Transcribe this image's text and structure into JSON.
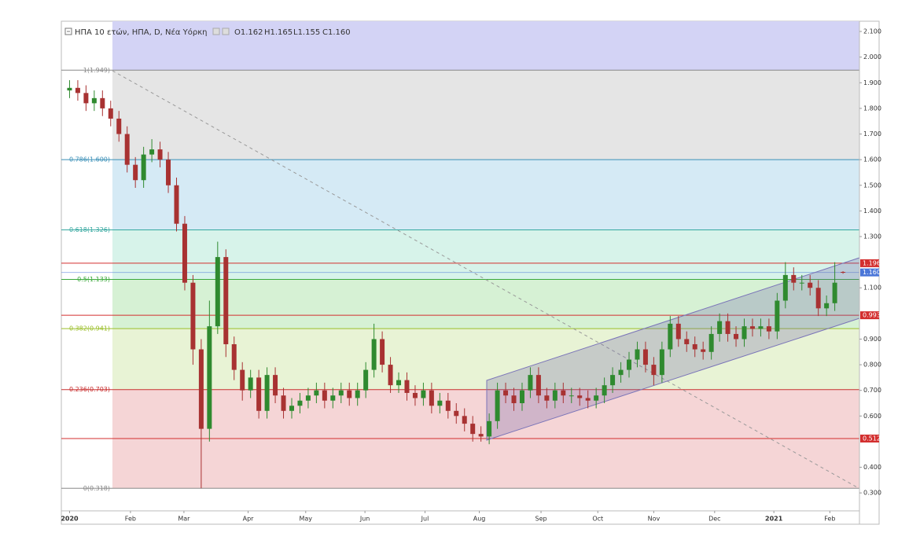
{
  "chart_data": {
    "type": "candlestick",
    "title": "ΗΠΑ 10 ετών, ΗΠΑ, D, Νέα Υόρκη",
    "ohlc_labels": [
      "O1.162",
      "H1.165",
      "L1.155",
      "C1.160"
    ],
    "xlim": [
      -1,
      96
    ],
    "ylim": [
      0.23,
      2.14
    ],
    "xticks": [
      {
        "value": 0,
        "label": "2020"
      },
      {
        "value": 7.4,
        "label": "Feb"
      },
      {
        "value": 13.9,
        "label": "Mar"
      },
      {
        "value": 21.7,
        "label": "Apr"
      },
      {
        "value": 28.7,
        "label": "May"
      },
      {
        "value": 35.9,
        "label": "Jun"
      },
      {
        "value": 43.2,
        "label": "Jul"
      },
      {
        "value": 49.8,
        "label": "Aug"
      },
      {
        "value": 57.3,
        "label": "Sep"
      },
      {
        "value": 64.2,
        "label": "Oct"
      },
      {
        "value": 71.0,
        "label": "Nov"
      },
      {
        "value": 78.4,
        "label": "Dec"
      },
      {
        "value": 85.6,
        "label": "2021"
      },
      {
        "value": 92.4,
        "label": "Feb"
      }
    ],
    "yticks": [
      {
        "value": 2.1,
        "label": "2.100"
      },
      {
        "value": 2.0,
        "label": "2.000"
      },
      {
        "value": 1.9,
        "label": "1.900"
      },
      {
        "value": 1.8,
        "label": "1.800"
      },
      {
        "value": 1.7,
        "label": "1.700"
      },
      {
        "value": 1.6,
        "label": "1.600"
      },
      {
        "value": 1.5,
        "label": "1.500"
      },
      {
        "value": 1.4,
        "label": "1.400"
      },
      {
        "value": 1.3,
        "label": "1.300"
      },
      {
        "value": 1.1,
        "label": "1.100"
      },
      {
        "value": 0.9,
        "label": "0.900"
      },
      {
        "value": 0.8,
        "label": "0.800"
      },
      {
        "value": 0.7,
        "label": "0.700"
      },
      {
        "value": 0.6,
        "label": "0.600"
      },
      {
        "value": 0.4,
        "label": "0.400"
      },
      {
        "value": 0.3,
        "label": "0.300"
      }
    ],
    "top_band_color": "#d3d3f5",
    "fib_levels": [
      {
        "label": "1(1.949)",
        "value": 1.949,
        "color": "#888888",
        "fill": "#e5e5e5"
      },
      {
        "label": "0.786(1.600)",
        "value": 1.6,
        "color": "#3a8fb7",
        "fill": "#d5eaf5"
      },
      {
        "label": "0.618(1.326)",
        "value": 1.326,
        "color": "#36a8a0",
        "fill": "#d7f3ea"
      },
      {
        "label": "0.5(1.133)",
        "value": 1.133,
        "color": "#3aa83a",
        "fill": "#d6f1d4"
      },
      {
        "label": "0.382(0.941)",
        "value": 0.941,
        "color": "#9bbf2a",
        "fill": "#e8f3d5"
      },
      {
        "label": "0.236(0.703)",
        "value": 0.703,
        "color": "#c83030",
        "fill": "#f5d5d6"
      },
      {
        "label": "0(0.318)",
        "value": 0.318,
        "color": "#888888",
        "fill": null
      }
    ],
    "hlines": [
      1.196,
      0.993,
      0.512
    ],
    "hline_color": "#d32f2f",
    "last_price": {
      "value": 1.16,
      "label": "1.160"
    },
    "last_price_color": "#4a76d8",
    "up_color": "#2f8a2f",
    "down_color": "#a83232",
    "open": [
      1.87,
      1.88,
      1.86,
      1.82,
      1.84,
      1.8,
      1.76,
      1.7,
      1.58,
      1.52,
      1.62,
      1.64,
      1.6,
      1.5,
      1.35,
      1.12,
      0.86,
      0.55,
      0.95,
      1.22,
      0.88,
      0.78,
      0.7,
      0.75,
      0.62,
      0.76,
      0.68,
      0.62,
      0.64,
      0.66,
      0.68,
      0.7,
      0.66,
      0.68,
      0.7,
      0.67,
      0.7,
      0.78,
      0.9,
      0.8,
      0.72,
      0.74,
      0.69,
      0.67,
      0.7,
      0.64,
      0.66,
      0.62,
      0.6,
      0.57,
      0.53,
      0.52,
      0.58,
      0.7,
      0.68,
      0.65,
      0.7,
      0.76,
      0.68,
      0.66,
      0.7,
      0.68,
      0.68,
      0.67,
      0.66,
      0.68,
      0.72,
      0.76,
      0.78,
      0.82,
      0.86,
      0.8,
      0.76,
      0.86,
      0.96,
      0.9,
      0.88,
      0.86,
      0.85,
      0.92,
      0.97,
      0.92,
      0.9,
      0.95,
      0.94,
      0.95,
      0.93,
      1.05,
      1.15,
      1.12,
      1.12,
      1.1,
      1.02,
      1.04,
      1.162
    ],
    "high": [
      1.91,
      1.91,
      1.89,
      1.87,
      1.87,
      1.83,
      1.79,
      1.73,
      1.61,
      1.65,
      1.68,
      1.67,
      1.63,
      1.53,
      1.38,
      1.15,
      0.9,
      1.05,
      1.28,
      1.25,
      0.91,
      0.81,
      0.78,
      0.78,
      0.79,
      0.79,
      0.71,
      0.67,
      0.69,
      0.71,
      0.73,
      0.73,
      0.71,
      0.73,
      0.73,
      0.73,
      0.81,
      0.96,
      0.93,
      0.83,
      0.77,
      0.77,
      0.72,
      0.73,
      0.73,
      0.69,
      0.69,
      0.65,
      0.63,
      0.6,
      0.56,
      0.61,
      0.73,
      0.73,
      0.71,
      0.73,
      0.79,
      0.79,
      0.71,
      0.73,
      0.73,
      0.71,
      0.71,
      0.7,
      0.71,
      0.75,
      0.79,
      0.81,
      0.85,
      0.89,
      0.89,
      0.83,
      0.89,
      0.99,
      0.99,
      0.93,
      0.91,
      0.89,
      0.95,
      1.0,
      1.0,
      0.95,
      0.98,
      0.98,
      0.98,
      0.98,
      1.08,
      1.2,
      1.18,
      1.15,
      1.15,
      1.13,
      1.07,
      1.2,
      1.165
    ],
    "low": [
      1.84,
      1.83,
      1.79,
      1.79,
      1.77,
      1.73,
      1.67,
      1.55,
      1.49,
      1.49,
      1.59,
      1.57,
      1.47,
      1.32,
      1.09,
      0.8,
      0.318,
      0.5,
      0.92,
      0.83,
      0.74,
      0.66,
      0.67,
      0.59,
      0.59,
      0.65,
      0.59,
      0.59,
      0.61,
      0.63,
      0.65,
      0.63,
      0.63,
      0.65,
      0.64,
      0.64,
      0.67,
      0.75,
      0.77,
      0.69,
      0.69,
      0.66,
      0.64,
      0.64,
      0.61,
      0.61,
      0.59,
      0.57,
      0.54,
      0.5,
      0.5,
      0.49,
      0.55,
      0.65,
      0.62,
      0.62,
      0.67,
      0.65,
      0.63,
      0.63,
      0.65,
      0.65,
      0.64,
      0.63,
      0.63,
      0.65,
      0.69,
      0.73,
      0.75,
      0.79,
      0.77,
      0.72,
      0.73,
      0.83,
      0.87,
      0.85,
      0.83,
      0.82,
      0.82,
      0.89,
      0.89,
      0.87,
      0.87,
      0.91,
      0.91,
      0.9,
      0.9,
      1.02,
      1.09,
      1.09,
      1.07,
      0.99,
      0.99,
      1.01,
      1.155
    ],
    "close": [
      1.88,
      1.86,
      1.82,
      1.84,
      1.8,
      1.76,
      1.7,
      1.58,
      1.52,
      1.62,
      1.64,
      1.6,
      1.5,
      1.35,
      1.12,
      0.86,
      0.55,
      0.95,
      1.22,
      0.88,
      0.78,
      0.7,
      0.75,
      0.62,
      0.76,
      0.68,
      0.62,
      0.64,
      0.66,
      0.68,
      0.7,
      0.66,
      0.68,
      0.7,
      0.67,
      0.7,
      0.78,
      0.9,
      0.8,
      0.72,
      0.74,
      0.69,
      0.67,
      0.7,
      0.64,
      0.66,
      0.62,
      0.6,
      0.57,
      0.53,
      0.52,
      0.58,
      0.7,
      0.68,
      0.65,
      0.7,
      0.76,
      0.68,
      0.66,
      0.7,
      0.68,
      0.68,
      0.67,
      0.66,
      0.68,
      0.72,
      0.76,
      0.78,
      0.82,
      0.86,
      0.8,
      0.76,
      0.86,
      0.96,
      0.9,
      0.88,
      0.86,
      0.85,
      0.92,
      0.97,
      0.92,
      0.9,
      0.95,
      0.94,
      0.95,
      0.93,
      1.05,
      1.15,
      1.12,
      1.12,
      1.1,
      1.02,
      1.04,
      1.12,
      1.16
    ]
  }
}
